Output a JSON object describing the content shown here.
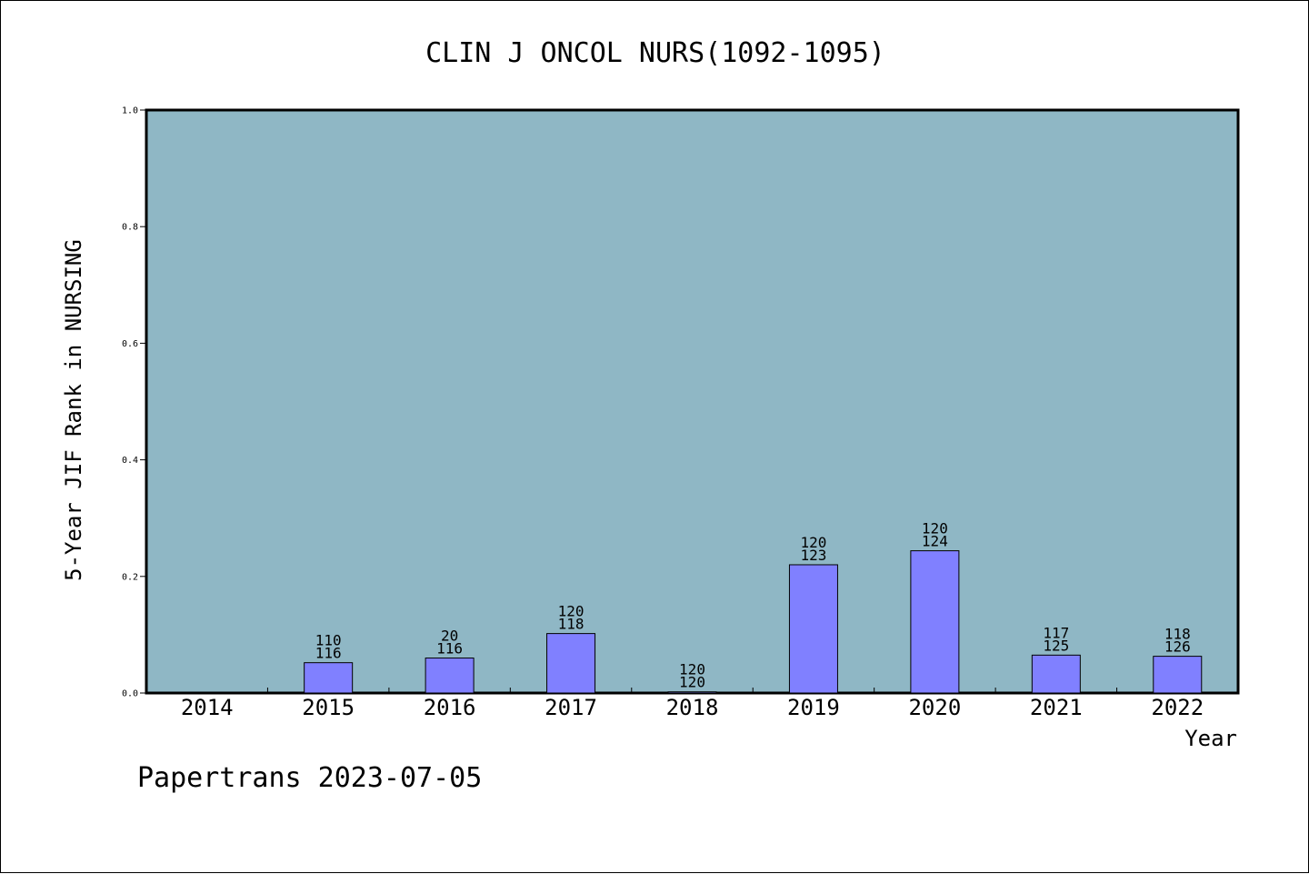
{
  "chart_data": {
    "type": "bar",
    "title": "CLIN J ONCOL NURS(1092-1095)",
    "xlabel": "Year",
    "ylabel": "5-Year JIF Rank in NURSING",
    "ylim": [
      0,
      1.0
    ],
    "yticks": [
      "0.0",
      "0.2",
      "0.4",
      "0.6",
      "0.8",
      "1.0"
    ],
    "categories": [
      "2014",
      "2015",
      "2016",
      "2017",
      "2018",
      "2019",
      "2020",
      "2021",
      "2022"
    ],
    "values": [
      null,
      0.052,
      0.06,
      0.102,
      0.002,
      0.22,
      0.244,
      0.065,
      0.063
    ],
    "labels_top": [
      "",
      "110",
      "20",
      "120",
      "120",
      "120",
      "120",
      "117",
      "118"
    ],
    "labels_bottom": [
      "",
      "116",
      "116",
      "118",
      "120",
      "123",
      "124",
      "125",
      "126"
    ],
    "grid": false,
    "colors": {
      "plot_bg": "#8fb7c5",
      "bar_fill": "#8080ff",
      "bar_stroke": "#000000"
    }
  },
  "footer": {
    "watermark": "Papertrans 2023-07-05"
  }
}
